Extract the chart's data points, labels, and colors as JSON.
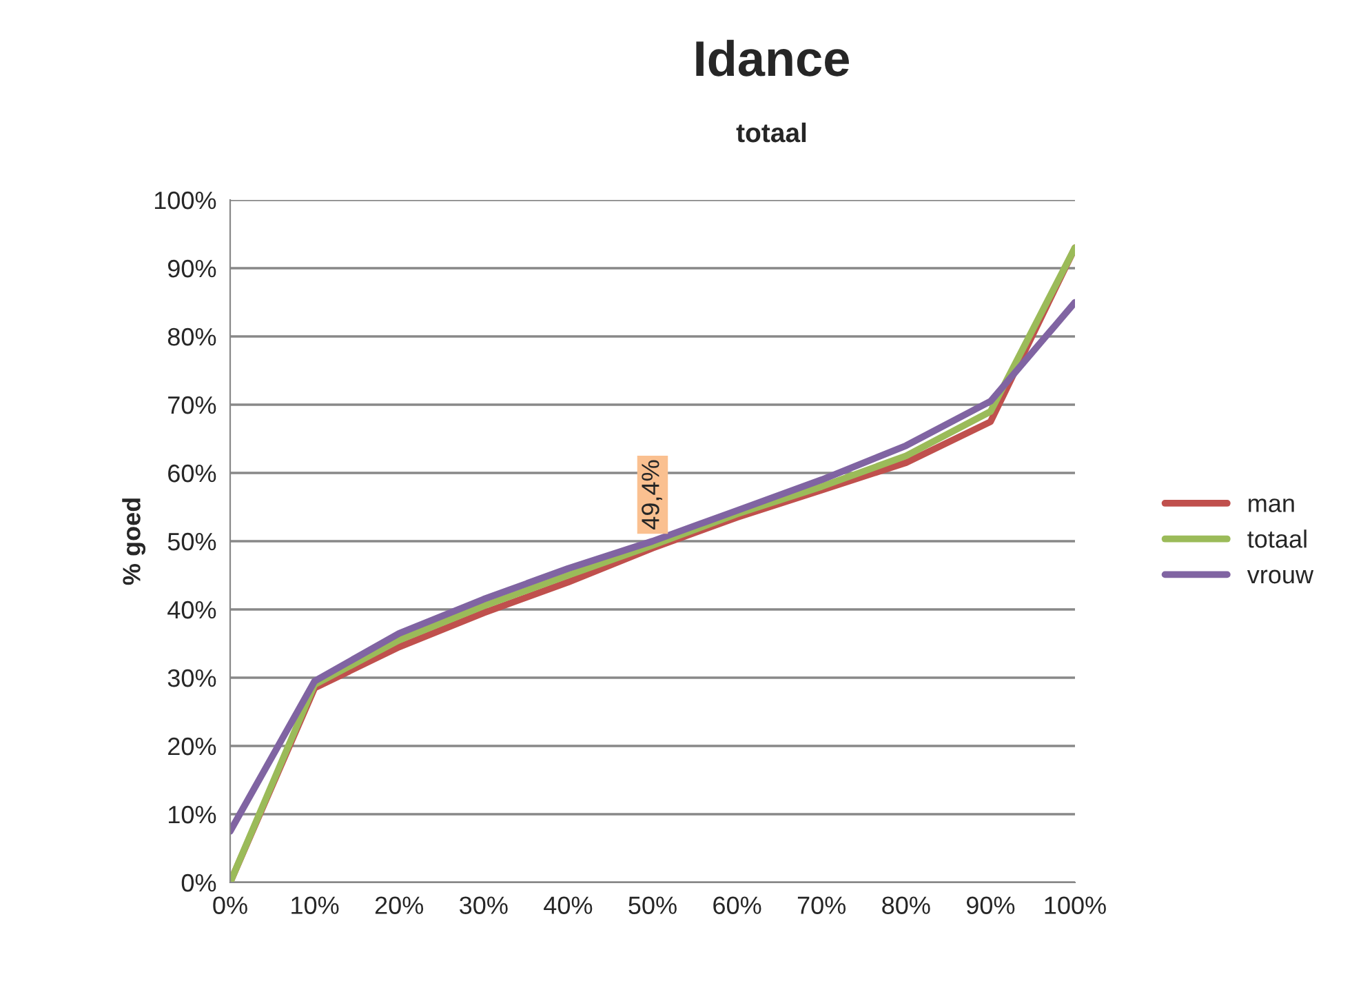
{
  "chart_data": {
    "type": "line",
    "title": "Idance",
    "subtitle": "totaal",
    "ylabel": "% goed",
    "x": [
      0,
      10,
      20,
      30,
      40,
      50,
      60,
      70,
      80,
      90,
      100
    ],
    "series": [
      {
        "name": "man",
        "color": "#c0504d",
        "values": [
          0,
          28.5,
          34.5,
          39.5,
          44,
          49,
          53.5,
          57.5,
          61.5,
          67.5,
          93
        ]
      },
      {
        "name": "totaal",
        "color": "#9bbb59",
        "values": [
          0,
          29,
          35.5,
          40.5,
          45,
          49.4,
          54,
          58,
          62.5,
          69,
          93
        ],
        "value_labels": [
          null,
          null,
          null,
          null,
          null,
          "49,4%",
          null,
          null,
          null,
          null,
          null
        ]
      },
      {
        "name": "vrouw",
        "color": "#8064a2",
        "values": [
          7.5,
          29.5,
          36.5,
          41.5,
          46,
          50,
          54.5,
          59,
          64,
          70.5,
          85
        ]
      }
    ],
    "xlim": [
      0,
      100
    ],
    "ylim": [
      0,
      100
    ],
    "xticks": [
      {
        "value": 0,
        "label": "0%"
      },
      {
        "value": 10,
        "label": "10%"
      },
      {
        "value": 20,
        "label": "20%"
      },
      {
        "value": 30,
        "label": "30%"
      },
      {
        "value": 40,
        "label": "40%"
      },
      {
        "value": 50,
        "label": "50%"
      },
      {
        "value": 60,
        "label": "60%"
      },
      {
        "value": 70,
        "label": "70%"
      },
      {
        "value": 80,
        "label": "80%"
      },
      {
        "value": 90,
        "label": "90%"
      },
      {
        "value": 100,
        "label": "100%"
      }
    ],
    "yticks": [
      {
        "value": 0,
        "label": "0%"
      },
      {
        "value": 10,
        "label": "10%"
      },
      {
        "value": 20,
        "label": "20%"
      },
      {
        "value": 30,
        "label": "30%"
      },
      {
        "value": 40,
        "label": "40%"
      },
      {
        "value": 50,
        "label": "50%"
      },
      {
        "value": 60,
        "label": "60%"
      },
      {
        "value": 70,
        "label": "70%"
      },
      {
        "value": 80,
        "label": "80%"
      },
      {
        "value": 90,
        "label": "90%"
      },
      {
        "value": 100,
        "label": "100%"
      }
    ],
    "grid": "y",
    "legend": "right"
  }
}
